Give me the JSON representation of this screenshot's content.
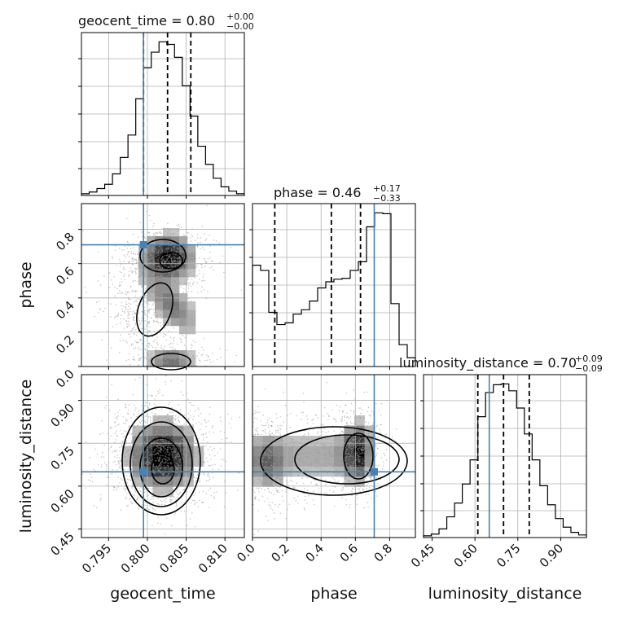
{
  "chart_data": {
    "type": "corner",
    "truth_color": "#4682b4",
    "params": [
      "geocent_time",
      "phase",
      "luminosity_distance"
    ],
    "titles": [
      {
        "text": "geocent_time = 0.80",
        "sup": "+0.00",
        "sub": "−0.00"
      },
      {
        "text": "phase = 0.46",
        "sup": "+0.17",
        "sub": "−0.33"
      },
      {
        "text": "luminosity_distance = 0.70",
        "sup": "+0.09",
        "sub": "−0.09"
      }
    ],
    "axis_labels": {
      "x": [
        "geocent_time",
        "phase",
        "luminosity_distance"
      ],
      "y": [
        "phase",
        "luminosity_distance"
      ]
    },
    "ranges": [
      [
        0.7915,
        0.8125
      ],
      [
        0.0,
        0.95
      ],
      [
        0.42,
        0.99
      ]
    ],
    "ticks": [
      {
        "values": [
          0.795,
          0.8,
          0.805,
          0.81
        ],
        "labels": [
          "0.795",
          "0.800",
          "0.805",
          "0.810"
        ]
      },
      {
        "values": [
          0.0,
          0.2,
          0.4,
          0.6,
          0.8
        ],
        "labels": [
          "0.0",
          "0.2",
          "0.4",
          "0.6",
          "0.8"
        ]
      },
      {
        "values": [
          0.45,
          0.6,
          0.75,
          0.9
        ],
        "labels": [
          "0.45",
          "0.60",
          "0.75",
          "0.90"
        ]
      }
    ],
    "truths": [
      0.7995,
      0.71,
      0.65
    ],
    "quantiles": [
      [
        0.7995,
        0.8026,
        0.8056
      ],
      [
        0.13,
        0.46,
        0.63
      ],
      [
        0.61,
        0.7,
        0.79
      ]
    ],
    "hist1d": [
      {
        "edges": [
          0.7915,
          0.8125
        ],
        "counts": [
          2,
          4,
          8,
          13,
          25,
          44,
          70,
          112,
          148,
          166,
          178,
          175,
          160,
          127,
          92,
          57,
          36,
          20,
          10,
          5,
          2
        ]
      },
      {
        "edges": [
          0.0,
          0.95
        ],
        "counts": [
          116,
          110,
          62,
          48,
          50,
          60,
          65,
          75,
          90,
          97,
          100,
          101,
          110,
          120,
          160,
          176,
          175,
          72,
          25,
          10
        ]
      },
      {
        "edges": [
          0.42,
          0.99
        ],
        "counts": [
          2,
          4,
          10,
          24,
          40,
          62,
          90,
          140,
          168,
          177,
          178,
          170,
          150,
          120,
          90,
          60,
          38,
          22,
          12,
          6,
          3
        ]
      }
    ]
  }
}
